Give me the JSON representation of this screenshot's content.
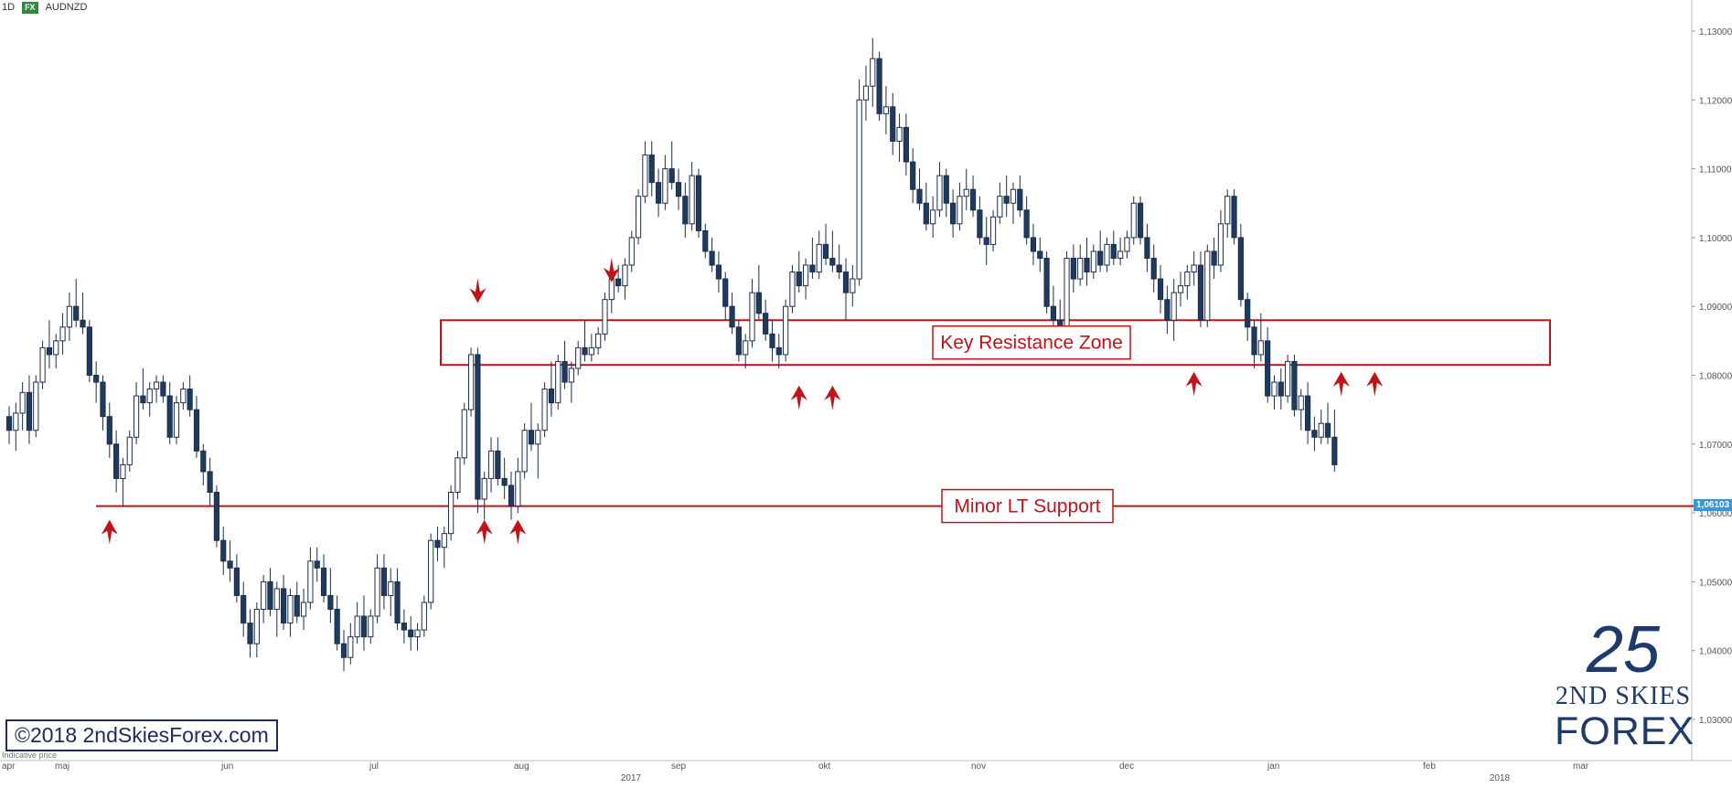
{
  "header": {
    "interval": "1D",
    "badge": "FX",
    "symbol": "AUDNZD"
  },
  "copyright": "©2018 2ndSkiesForex.com",
  "logo": {
    "numeral": "25",
    "line1": "2ND SKIES",
    "line2": "FOREX"
  },
  "indicative_label": "Indicative price",
  "chart_data": {
    "type": "candlestick",
    "symbol": "AUDNZD",
    "interval": "1D",
    "ylim": [
      1.025,
      1.135
    ],
    "y_ticks": [
      "1,13000",
      "1,12000",
      "1,11000",
      "1,10000",
      "1,09000",
      "1,08000",
      "1,07000",
      "1,06000",
      "1,05000",
      "1,04000",
      "1,03000"
    ],
    "last_price_label": "1,06103",
    "last_price": 1.061,
    "x_tick_labels": [
      "apr",
      "maj",
      "jun",
      "jul",
      "aug",
      "sep",
      "okt",
      "nov",
      "dec",
      "jan",
      "feb",
      "mar"
    ],
    "year_labels": [
      "2017",
      "2018"
    ],
    "key_resistance_zone": {
      "label": "Key Resistance Zone",
      "low": 1.0815,
      "high": 1.088
    },
    "minor_lt_support": {
      "label": "Minor LT Support",
      "level": 1.061
    },
    "candles": [
      [
        1.074,
        1.0755,
        1.07,
        1.072
      ],
      [
        1.072,
        1.076,
        1.069,
        1.0745
      ],
      [
        1.0745,
        1.079,
        1.072,
        1.0775
      ],
      [
        1.0775,
        1.08,
        1.07,
        1.072
      ],
      [
        1.072,
        1.08,
        1.071,
        1.079
      ],
      [
        1.079,
        1.085,
        1.078,
        1.084
      ],
      [
        1.084,
        1.088,
        1.081,
        1.083
      ],
      [
        1.083,
        1.086,
        1.081,
        1.085
      ],
      [
        1.085,
        1.089,
        1.083,
        1.087
      ],
      [
        1.087,
        1.092,
        1.085,
        1.09
      ],
      [
        1.09,
        1.094,
        1.087,
        1.088
      ],
      [
        1.088,
        1.092,
        1.086,
        1.087
      ],
      [
        1.087,
        1.088,
        1.079,
        1.08
      ],
      [
        1.08,
        1.082,
        1.076,
        1.079
      ],
      [
        1.079,
        1.08,
        1.072,
        1.074
      ],
      [
        1.074,
        1.076,
        1.068,
        1.07
      ],
      [
        1.07,
        1.072,
        1.063,
        1.065
      ],
      [
        1.065,
        1.068,
        1.061,
        1.067
      ],
      [
        1.067,
        1.072,
        1.066,
        1.071
      ],
      [
        1.071,
        1.079,
        1.07,
        1.077
      ],
      [
        1.077,
        1.081,
        1.075,
        1.076
      ],
      [
        1.076,
        1.079,
        1.074,
        1.078
      ],
      [
        1.078,
        1.08,
        1.076,
        1.079
      ],
      [
        1.079,
        1.08,
        1.076,
        1.077
      ],
      [
        1.077,
        1.079,
        1.07,
        1.071
      ],
      [
        1.071,
        1.077,
        1.07,
        1.076
      ],
      [
        1.076,
        1.079,
        1.075,
        1.078
      ],
      [
        1.078,
        1.08,
        1.074,
        1.075
      ],
      [
        1.075,
        1.077,
        1.068,
        1.069
      ],
      [
        1.069,
        1.07,
        1.064,
        1.066
      ],
      [
        1.066,
        1.068,
        1.061,
        1.063
      ],
      [
        1.063,
        1.064,
        1.055,
        1.056
      ],
      [
        1.056,
        1.058,
        1.051,
        1.053
      ],
      [
        1.053,
        1.056,
        1.05,
        1.052
      ],
      [
        1.052,
        1.054,
        1.047,
        1.048
      ],
      [
        1.048,
        1.05,
        1.042,
        1.044
      ],
      [
        1.044,
        1.046,
        1.039,
        1.041
      ],
      [
        1.041,
        1.047,
        1.039,
        1.046
      ],
      [
        1.046,
        1.051,
        1.044,
        1.05
      ],
      [
        1.05,
        1.052,
        1.045,
        1.046
      ],
      [
        1.046,
        1.05,
        1.042,
        1.049
      ],
      [
        1.049,
        1.051,
        1.043,
        1.044
      ],
      [
        1.044,
        1.049,
        1.042,
        1.048
      ],
      [
        1.048,
        1.05,
        1.044,
        1.045
      ],
      [
        1.045,
        1.049,
        1.043,
        1.047
      ],
      [
        1.047,
        1.055,
        1.046,
        1.053
      ],
      [
        1.053,
        1.055,
        1.05,
        1.052
      ],
      [
        1.052,
        1.054,
        1.047,
        1.048
      ],
      [
        1.048,
        1.052,
        1.044,
        1.046
      ],
      [
        1.046,
        1.048,
        1.04,
        1.041
      ],
      [
        1.041,
        1.043,
        1.037,
        1.039
      ],
      [
        1.039,
        1.044,
        1.038,
        1.042
      ],
      [
        1.042,
        1.047,
        1.041,
        1.045
      ],
      [
        1.045,
        1.048,
        1.04,
        1.042
      ],
      [
        1.042,
        1.046,
        1.041,
        1.045
      ],
      [
        1.045,
        1.054,
        1.044,
        1.052
      ],
      [
        1.052,
        1.054,
        1.046,
        1.048
      ],
      [
        1.048,
        1.052,
        1.045,
        1.05
      ],
      [
        1.05,
        1.052,
        1.043,
        1.044
      ],
      [
        1.044,
        1.046,
        1.041,
        1.043
      ],
      [
        1.043,
        1.045,
        1.04,
        1.042
      ],
      [
        1.042,
        1.044,
        1.04,
        1.043
      ],
      [
        1.043,
        1.048,
        1.042,
        1.047
      ],
      [
        1.047,
        1.057,
        1.046,
        1.056
      ],
      [
        1.056,
        1.058,
        1.053,
        1.055
      ],
      [
        1.055,
        1.058,
        1.052,
        1.057
      ],
      [
        1.057,
        1.064,
        1.056,
        1.063
      ],
      [
        1.063,
        1.069,
        1.062,
        1.068
      ],
      [
        1.068,
        1.076,
        1.067,
        1.075
      ],
      [
        1.075,
        1.084,
        1.074,
        1.083
      ],
      [
        1.083,
        1.084,
        1.06,
        1.062
      ],
      [
        1.062,
        1.066,
        1.059,
        1.065
      ],
      [
        1.065,
        1.071,
        1.063,
        1.069
      ],
      [
        1.069,
        1.071,
        1.064,
        1.065
      ],
      [
        1.065,
        1.068,
        1.062,
        1.064
      ],
      [
        1.064,
        1.066,
        1.059,
        1.061
      ],
      [
        1.061,
        1.068,
        1.06,
        1.066
      ],
      [
        1.066,
        1.073,
        1.065,
        1.072
      ],
      [
        1.072,
        1.076,
        1.069,
        1.07
      ],
      [
        1.07,
        1.073,
        1.065,
        1.072
      ],
      [
        1.072,
        1.079,
        1.071,
        1.078
      ],
      [
        1.078,
        1.082,
        1.074,
        1.076
      ],
      [
        1.076,
        1.083,
        1.075,
        1.082
      ],
      [
        1.082,
        1.085,
        1.078,
        1.079
      ],
      [
        1.079,
        1.082,
        1.076,
        1.081
      ],
      [
        1.081,
        1.085,
        1.08,
        1.084
      ],
      [
        1.084,
        1.088,
        1.082,
        1.083
      ],
      [
        1.083,
        1.086,
        1.082,
        1.084
      ],
      [
        1.084,
        1.087,
        1.083,
        1.086
      ],
      [
        1.086,
        1.092,
        1.085,
        1.091
      ],
      [
        1.091,
        1.095,
        1.089,
        1.094
      ],
      [
        1.094,
        1.096,
        1.092,
        1.093
      ],
      [
        1.093,
        1.097,
        1.091,
        1.096
      ],
      [
        1.096,
        1.101,
        1.095,
        1.1
      ],
      [
        1.1,
        1.107,
        1.099,
        1.106
      ],
      [
        1.106,
        1.114,
        1.105,
        1.112
      ],
      [
        1.112,
        1.114,
        1.106,
        1.108
      ],
      [
        1.108,
        1.11,
        1.103,
        1.105
      ],
      [
        1.105,
        1.112,
        1.104,
        1.11
      ],
      [
        1.11,
        1.114,
        1.107,
        1.108
      ],
      [
        1.108,
        1.11,
        1.104,
        1.106
      ],
      [
        1.106,
        1.108,
        1.1,
        1.102
      ],
      [
        1.102,
        1.111,
        1.101,
        1.109
      ],
      [
        1.109,
        1.11,
        1.1,
        1.101
      ],
      [
        1.101,
        1.102,
        1.097,
        1.098
      ],
      [
        1.098,
        1.1,
        1.095,
        1.096
      ],
      [
        1.096,
        1.098,
        1.092,
        1.094
      ],
      [
        1.094,
        1.095,
        1.088,
        1.09
      ],
      [
        1.09,
        1.092,
        1.086,
        1.087
      ],
      [
        1.087,
        1.088,
        1.082,
        1.083
      ],
      [
        1.083,
        1.086,
        1.081,
        1.085
      ],
      [
        1.085,
        1.094,
        1.084,
        1.092
      ],
      [
        1.092,
        1.096,
        1.088,
        1.089
      ],
      [
        1.089,
        1.091,
        1.085,
        1.086
      ],
      [
        1.086,
        1.088,
        1.082,
        1.084
      ],
      [
        1.084,
        1.086,
        1.081,
        1.083
      ],
      [
        1.083,
        1.091,
        1.082,
        1.09
      ],
      [
        1.09,
        1.096,
        1.089,
        1.095
      ],
      [
        1.095,
        1.098,
        1.092,
        1.093
      ],
      [
        1.093,
        1.097,
        1.091,
        1.096
      ],
      [
        1.096,
        1.1,
        1.094,
        1.095
      ],
      [
        1.095,
        1.101,
        1.094,
        1.099
      ],
      [
        1.099,
        1.102,
        1.096,
        1.097
      ],
      [
        1.097,
        1.101,
        1.095,
        1.096
      ],
      [
        1.096,
        1.099,
        1.094,
        1.095
      ],
      [
        1.095,
        1.097,
        1.088,
        1.092
      ],
      [
        1.092,
        1.096,
        1.09,
        1.094
      ],
      [
        1.094,
        1.123,
        1.093,
        1.12
      ],
      [
        1.12,
        1.125,
        1.117,
        1.122
      ],
      [
        1.122,
        1.129,
        1.119,
        1.126
      ],
      [
        1.126,
        1.127,
        1.117,
        1.118
      ],
      [
        1.118,
        1.122,
        1.115,
        1.119
      ],
      [
        1.119,
        1.121,
        1.112,
        1.114
      ],
      [
        1.114,
        1.118,
        1.111,
        1.116
      ],
      [
        1.116,
        1.118,
        1.109,
        1.111
      ],
      [
        1.111,
        1.113,
        1.105,
        1.107
      ],
      [
        1.107,
        1.11,
        1.104,
        1.105
      ],
      [
        1.105,
        1.108,
        1.101,
        1.102
      ],
      [
        1.102,
        1.106,
        1.1,
        1.104
      ],
      [
        1.104,
        1.111,
        1.103,
        1.109
      ],
      [
        1.109,
        1.11,
        1.103,
        1.105
      ],
      [
        1.105,
        1.107,
        1.1,
        1.102
      ],
      [
        1.102,
        1.108,
        1.101,
        1.106
      ],
      [
        1.106,
        1.11,
        1.104,
        1.107
      ],
      [
        1.107,
        1.109,
        1.103,
        1.104
      ],
      [
        1.104,
        1.106,
        1.099,
        1.1
      ],
      [
        1.1,
        1.103,
        1.096,
        1.099
      ],
      [
        1.099,
        1.104,
        1.098,
        1.103
      ],
      [
        1.103,
        1.108,
        1.102,
        1.106
      ],
      [
        1.106,
        1.109,
        1.103,
        1.105
      ],
      [
        1.105,
        1.108,
        1.102,
        1.107
      ],
      [
        1.107,
        1.109,
        1.103,
        1.104
      ],
      [
        1.104,
        1.106,
        1.099,
        1.1
      ],
      [
        1.1,
        1.102,
        1.096,
        1.098
      ],
      [
        1.098,
        1.1,
        1.095,
        1.097
      ],
      [
        1.097,
        1.098,
        1.089,
        1.09
      ],
      [
        1.09,
        1.093,
        1.086,
        1.088
      ],
      [
        1.088,
        1.091,
        1.086,
        1.087
      ],
      [
        1.087,
        1.098,
        1.086,
        1.097
      ],
      [
        1.097,
        1.099,
        1.092,
        1.094
      ],
      [
        1.094,
        1.099,
        1.093,
        1.097
      ],
      [
        1.097,
        1.1,
        1.093,
        1.095
      ],
      [
        1.095,
        1.099,
        1.094,
        1.098
      ],
      [
        1.098,
        1.101,
        1.095,
        1.096
      ],
      [
        1.096,
        1.1,
        1.095,
        1.099
      ],
      [
        1.099,
        1.101,
        1.096,
        1.097
      ],
      [
        1.097,
        1.1,
        1.096,
        1.098
      ],
      [
        1.098,
        1.101,
        1.097,
        1.1
      ],
      [
        1.1,
        1.106,
        1.099,
        1.105
      ],
      [
        1.105,
        1.106,
        1.099,
        1.1
      ],
      [
        1.1,
        1.102,
        1.095,
        1.097
      ],
      [
        1.097,
        1.099,
        1.092,
        1.094
      ],
      [
        1.094,
        1.096,
        1.089,
        1.091
      ],
      [
        1.091,
        1.093,
        1.086,
        1.088
      ],
      [
        1.088,
        1.094,
        1.085,
        1.092
      ],
      [
        1.092,
        1.095,
        1.09,
        1.093
      ],
      [
        1.093,
        1.096,
        1.091,
        1.095
      ],
      [
        1.095,
        1.098,
        1.093,
        1.096
      ],
      [
        1.096,
        1.098,
        1.087,
        1.088
      ],
      [
        1.088,
        1.099,
        1.087,
        1.098
      ],
      [
        1.098,
        1.1,
        1.094,
        1.096
      ],
      [
        1.096,
        1.104,
        1.095,
        1.102
      ],
      [
        1.102,
        1.107,
        1.1,
        1.106
      ],
      [
        1.106,
        1.107,
        1.099,
        1.1
      ],
      [
        1.1,
        1.102,
        1.09,
        1.091
      ],
      [
        1.091,
        1.092,
        1.085,
        1.087
      ],
      [
        1.087,
        1.088,
        1.081,
        1.083
      ],
      [
        1.083,
        1.089,
        1.082,
        1.085
      ],
      [
        1.085,
        1.087,
        1.076,
        1.077
      ],
      [
        1.077,
        1.08,
        1.075,
        1.079
      ],
      [
        1.079,
        1.081,
        1.075,
        1.077
      ],
      [
        1.077,
        1.083,
        1.076,
        1.082
      ],
      [
        1.082,
        1.083,
        1.074,
        1.075
      ],
      [
        1.075,
        1.078,
        1.072,
        1.077
      ],
      [
        1.077,
        1.079,
        1.07,
        1.072
      ],
      [
        1.072,
        1.074,
        1.069,
        1.071
      ],
      [
        1.071,
        1.075,
        1.07,
        1.073
      ],
      [
        1.073,
        1.076,
        1.07,
        1.071
      ],
      [
        1.071,
        1.075,
        1.066,
        1.067
      ]
    ],
    "arrows_down": [
      {
        "i": 70,
        "price": 1.0905
      },
      {
        "i": 90,
        "price": 1.0935
      }
    ],
    "arrows_up": [
      {
        "i": 15,
        "price": 1.059
      },
      {
        "i": 71,
        "price": 1.059
      },
      {
        "i": 76,
        "price": 1.059
      },
      {
        "i": 118,
        "price": 1.0785
      },
      {
        "i": 123,
        "price": 1.0785
      },
      {
        "i": 177,
        "price": 1.0805
      },
      {
        "i": 199,
        "price": 1.0805
      },
      {
        "i": 204,
        "price": 1.0805
      }
    ]
  }
}
